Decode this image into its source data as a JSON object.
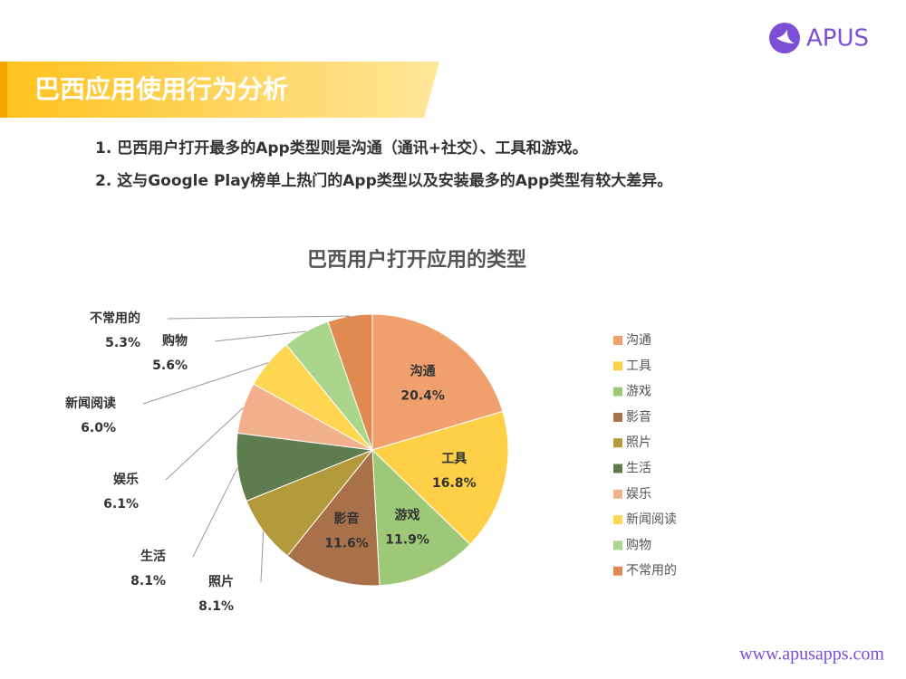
{
  "header": {
    "logo": "APUS",
    "title": "巴西应用使用行为分析"
  },
  "bullets": [
    "1. 巴西用户打开最多的App类型则是沟通（通讯+社交）、工具和游戏。",
    "2. 这与Google Play榜单上热门的App类型以及安装最多的App类型有较大差异。"
  ],
  "footer": "www.apusapps.com",
  "chart_data": {
    "type": "pie",
    "title": "巴西用户打开应用的类型",
    "categories": [
      "沟通",
      "工具",
      "游戏",
      "影音",
      "照片",
      "生活",
      "娱乐",
      "新闻阅读",
      "购物",
      "不常用的"
    ],
    "values": [
      20.4,
      16.8,
      11.9,
      11.6,
      8.1,
      8.1,
      6.1,
      6.0,
      5.6,
      5.3
    ],
    "value_labels": [
      "20.4%",
      "16.8%",
      "11.9%",
      "11.6%",
      "8.1%",
      "8.1%",
      "6.1%",
      "6.0%",
      "5.6%",
      "5.3%"
    ],
    "colors": [
      "#f0a06c",
      "#ffcf47",
      "#9cc878",
      "#a8714a",
      "#b39b3c",
      "#5f7c4f",
      "#f2b18c",
      "#ffd651",
      "#a9d58c",
      "#e08a52"
    ],
    "legend": "right"
  }
}
